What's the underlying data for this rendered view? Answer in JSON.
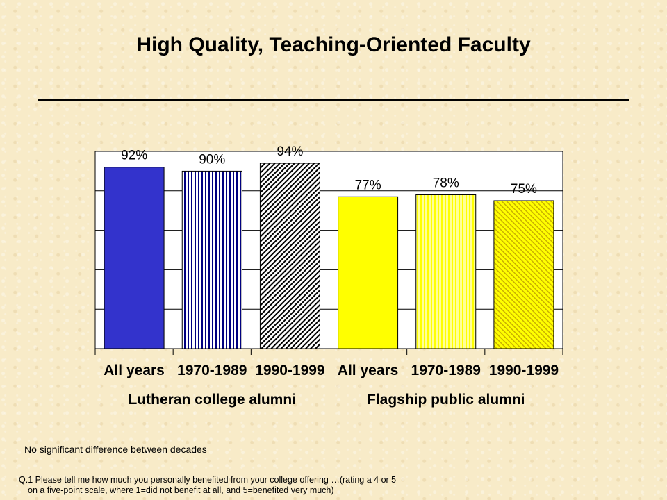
{
  "chart_data": {
    "type": "bar",
    "title": "High Quality, Teaching-Oriented Faculty",
    "categories": [
      "All years",
      "1970-1989",
      "1990-1999",
      "All years",
      "1970-1989",
      "1990-1999"
    ],
    "values": [
      92,
      90,
      94,
      77,
      78,
      75
    ],
    "value_labels": [
      "92%",
      "90%",
      "94%",
      "77%",
      "78%",
      "75%"
    ],
    "groups": [
      {
        "name": "Lutheran college alumni",
        "categories": [
          0,
          1,
          2
        ]
      },
      {
        "name": "Flagship public alumni",
        "categories": [
          3,
          4,
          5
        ]
      }
    ],
    "ylim": [
      0,
      100
    ],
    "grid": true,
    "bar_styles": [
      {
        "fill": "#3333cc",
        "pattern": "solid"
      },
      {
        "fill": "#000080",
        "pattern": "vertical"
      },
      {
        "fill": "#000000",
        "pattern": "diagonal"
      },
      {
        "fill": "#ffff00",
        "pattern": "solid"
      },
      {
        "fill": "#ffff00",
        "pattern": "vertical"
      },
      {
        "fill": "#ffff00",
        "pattern": "diagonal"
      }
    ]
  },
  "notes": {
    "significance": "No significant difference between decades",
    "question_line1": "Q.1 Please tell me how much you personally benefited from your college offering …(rating a 4 or 5",
    "question_line2": "on a five-point scale, where 1=did not benefit at all, and 5=benefited very much)"
  }
}
